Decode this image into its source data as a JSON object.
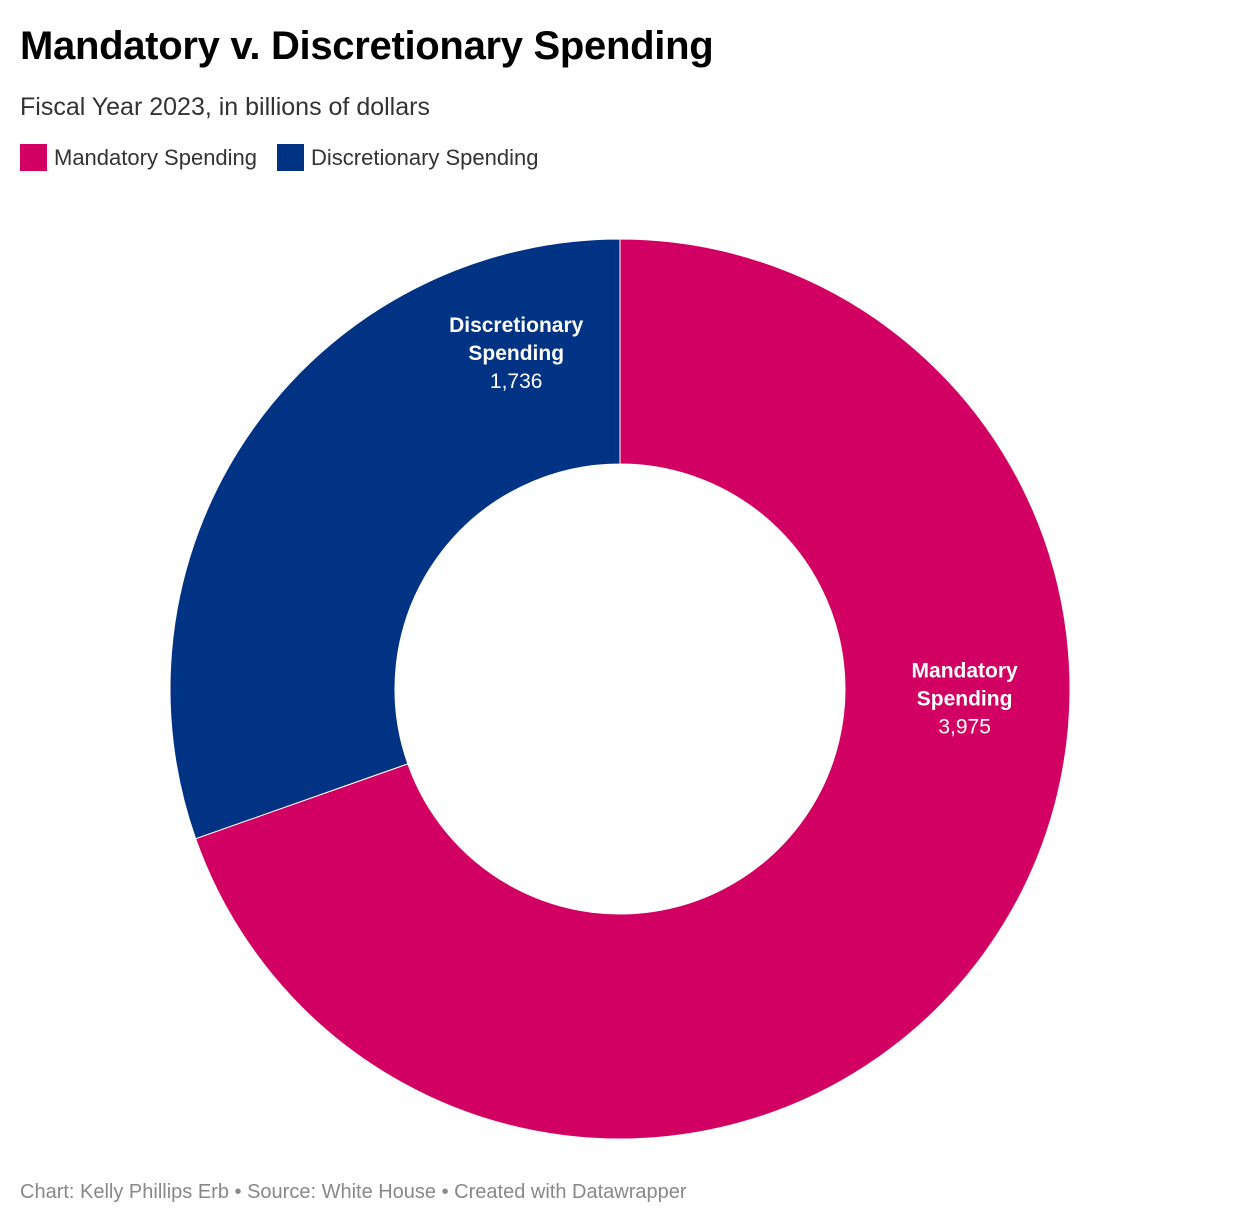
{
  "title": "Mandatory v. Discretionary Spending",
  "subtitle": "Fiscal Year 2023, in billions of dollars",
  "legend": [
    {
      "label": "Mandatory Spending",
      "color": "#d10062"
    },
    {
      "label": "Discretionary Spending",
      "color": "#003383"
    }
  ],
  "footer": {
    "text": "Chart: Kelly Phillips Erb  • Source: White House • Created with Datawrapper"
  },
  "chart_data": {
    "type": "pie",
    "variant": "donut",
    "title": "Mandatory v. Discretionary Spending",
    "subtitle": "Fiscal Year 2023, in billions of dollars",
    "legend_position": "top-left",
    "categories": [
      "Mandatory Spending",
      "Discretionary Spending"
    ],
    "values": [
      3975,
      1736
    ],
    "value_labels": [
      "3,975",
      "1,736"
    ],
    "colors": [
      "#d10062",
      "#003383"
    ],
    "label_lines": [
      [
        "Mandatory",
        "Spending"
      ],
      [
        "Discretionary",
        "Spending"
      ]
    ]
  }
}
